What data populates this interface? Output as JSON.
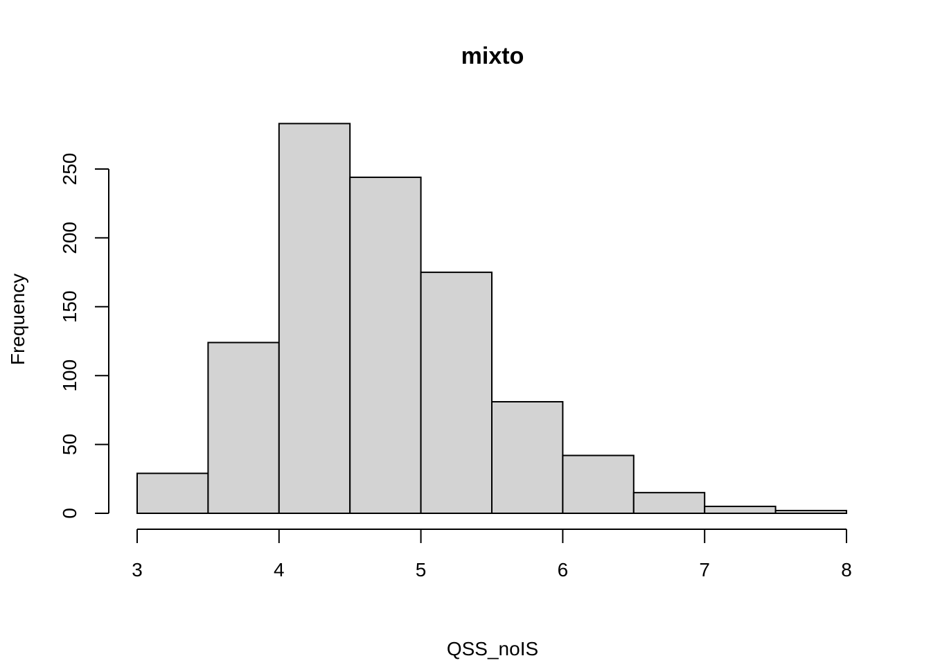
{
  "chart_data": {
    "type": "bar",
    "title": "mixto",
    "xlabel": "QSS_noIS",
    "ylabel": "Frequency",
    "bins": [
      {
        "from": 3.0,
        "to": 3.5,
        "count": 29
      },
      {
        "from": 3.5,
        "to": 4.0,
        "count": 124
      },
      {
        "from": 4.0,
        "to": 4.5,
        "count": 283
      },
      {
        "from": 4.5,
        "to": 5.0,
        "count": 244
      },
      {
        "from": 5.0,
        "to": 5.5,
        "count": 175
      },
      {
        "from": 5.5,
        "to": 6.0,
        "count": 81
      },
      {
        "from": 6.0,
        "to": 6.5,
        "count": 42
      },
      {
        "from": 6.5,
        "to": 7.0,
        "count": 15
      },
      {
        "from": 7.0,
        "to": 7.5,
        "count": 5
      },
      {
        "from": 7.5,
        "to": 8.0,
        "count": 2
      }
    ],
    "xlim": [
      3,
      8
    ],
    "ylim": [
      0,
      283
    ],
    "xticks": [
      "3",
      "4",
      "5",
      "6",
      "7",
      "8"
    ],
    "yticks": [
      "0",
      "50",
      "100",
      "150",
      "200",
      "250"
    ],
    "bar_fill": "#d3d3d3",
    "grid": false,
    "legend": "none"
  }
}
